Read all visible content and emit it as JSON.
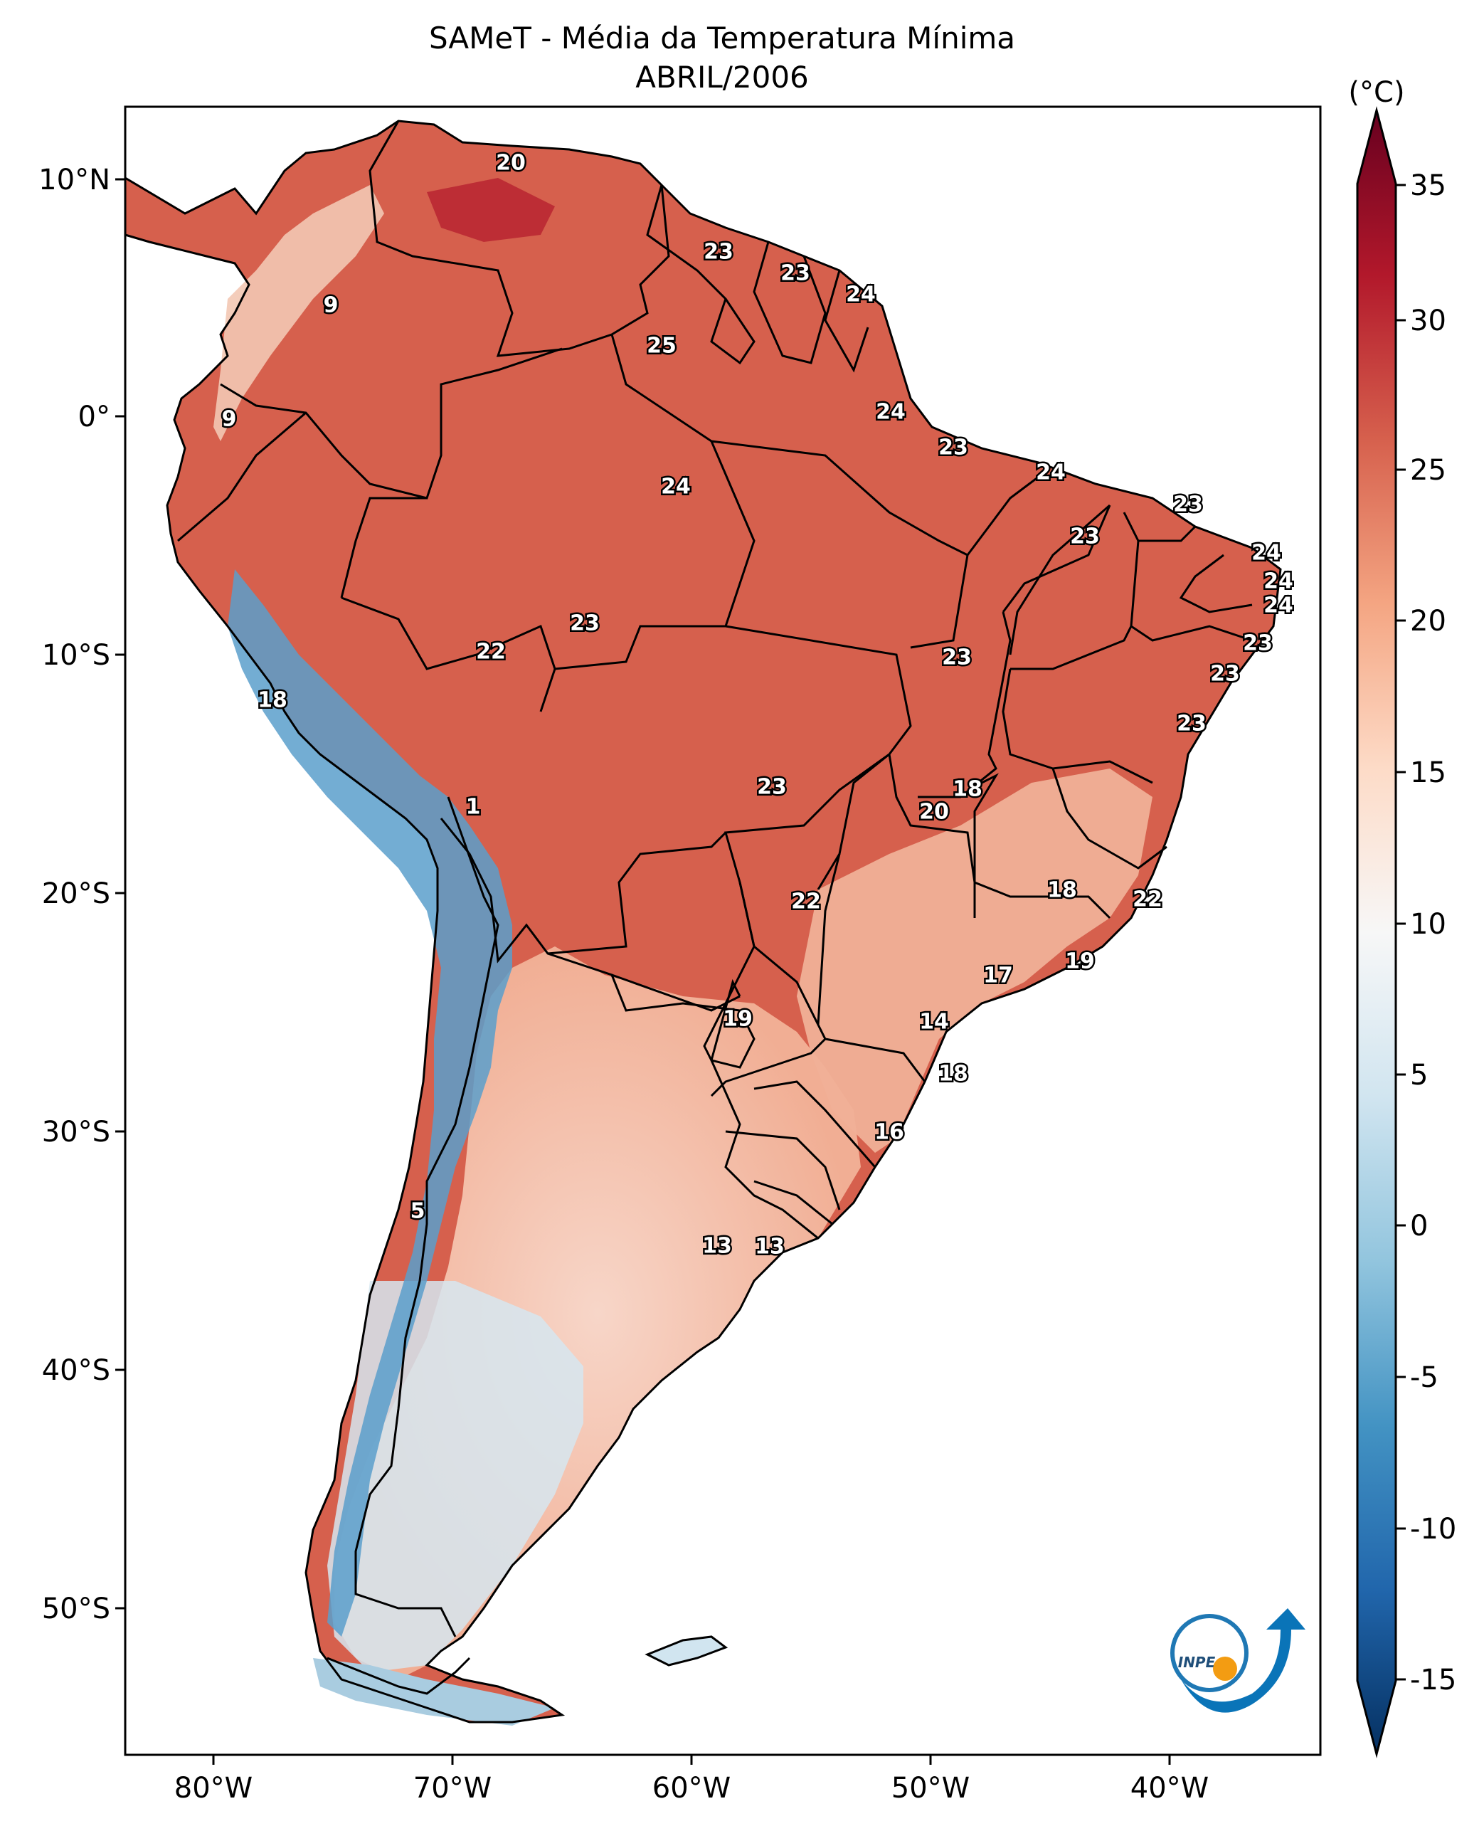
{
  "title_line1": "SAMeT - Média da Temperatura Mínima",
  "title_line2": "ABRIL/2006",
  "colorbar": {
    "unit": "(°C)",
    "ticks": [
      "35",
      "30",
      "25",
      "20",
      "15",
      "10",
      "5",
      "0",
      "-5",
      "-10",
      "-15"
    ],
    "colors": [
      "#053061",
      "#2166ac",
      "#4393c3",
      "#92c5de",
      "#d1e5f0",
      "#f7f7f7",
      "#fddbc7",
      "#f4a582",
      "#d6604d",
      "#b2182b",
      "#67001f"
    ]
  },
  "axes": {
    "lon_labels": [
      "80°W",
      "70°W",
      "60°W",
      "50°W",
      "40°W"
    ],
    "lat_labels": [
      "10°N",
      "0°",
      "10°S",
      "20°S",
      "30°S",
      "40°S",
      "50°S"
    ]
  },
  "point_labels": [
    "20",
    "23",
    "23",
    "24",
    "9",
    "25",
    "9",
    "24",
    "24",
    "23",
    "23",
    "24",
    "23",
    "24",
    "24",
    "24",
    "23",
    "22",
    "23",
    "18",
    "23",
    "23",
    "23",
    "23",
    "18",
    "1",
    "20",
    "18",
    "22",
    "22",
    "19",
    "17",
    "19",
    "14",
    "18",
    "16",
    "5",
    "13",
    "13"
  ],
  "logo_text": "INPE"
}
